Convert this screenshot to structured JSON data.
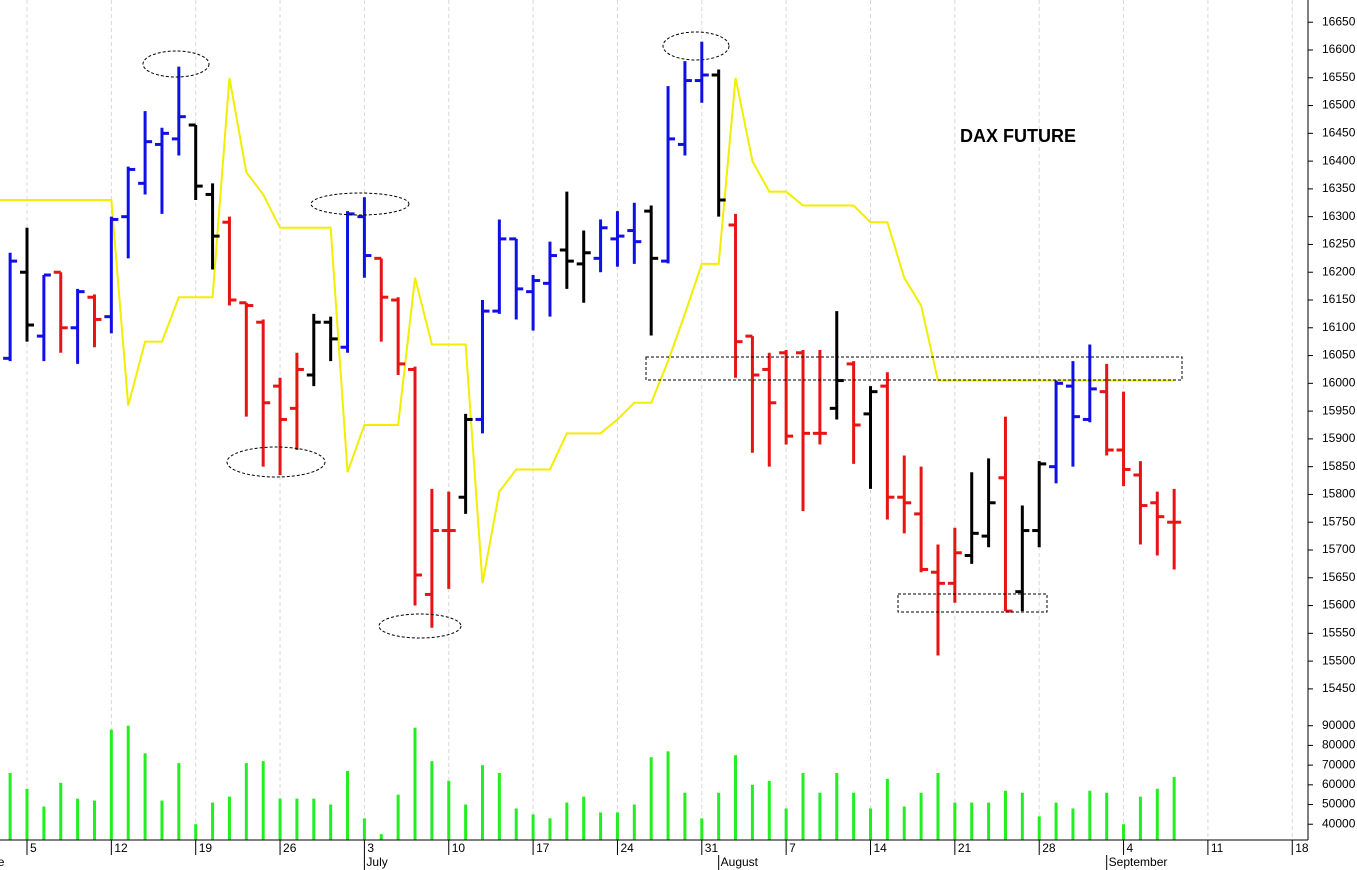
{
  "chart_data": [
    {
      "type": "ohlc",
      "title": "DAX FUTURE",
      "x": [
        -1,
        0,
        1,
        2,
        3,
        4,
        5,
        6,
        7,
        8,
        9,
        10,
        11,
        12,
        13,
        14,
        15,
        16,
        17,
        18,
        19,
        20,
        21,
        22,
        23,
        24,
        25,
        26,
        27,
        28,
        29,
        30,
        31,
        32,
        33,
        34,
        35,
        36,
        37,
        38,
        39,
        40,
        41,
        42,
        43,
        44,
        45,
        46,
        47,
        48,
        49,
        50,
        51,
        52,
        53,
        54,
        55,
        56,
        57,
        58,
        59,
        60,
        61,
        62,
        63,
        64,
        65,
        66,
        67,
        68
      ],
      "open": [
        16045,
        16200,
        16085,
        16200,
        16100,
        16155,
        16120,
        16300,
        16360,
        16430,
        16440,
        16465,
        16340,
        16290,
        16145,
        16110,
        15995,
        15955,
        16015,
        16110,
        16065,
        16300,
        16225,
        16150,
        16025,
        15620,
        15735,
        15795,
        15935,
        16130,
        16260,
        16165,
        16180,
        16240,
        16215,
        16225,
        16260,
        16275,
        16310,
        16220,
        16430,
        16545,
        16555,
        16285,
        16085,
        16025,
        16055,
        16055,
        15910,
        15955,
        16035,
        15945,
        15995,
        15795,
        15765,
        15660,
        15640,
        15690,
        15725,
        15830,
        15625,
        15735,
        15850,
        15995,
        15935,
        15985,
        15880,
        15835,
        15785,
        15750
      ],
      "high": [
        16235,
        16280,
        16195,
        16200,
        16170,
        16160,
        16300,
        16390,
        16490,
        16460,
        16570,
        16465,
        16360,
        16300,
        16145,
        16115,
        16010,
        16055,
        16125,
        16120,
        16310,
        16335,
        16225,
        16155,
        16030,
        15810,
        15805,
        15945,
        16150,
        16295,
        16260,
        16195,
        16255,
        16345,
        16275,
        16295,
        16310,
        16325,
        16320,
        16535,
        16580,
        16615,
        16565,
        16305,
        16085,
        16055,
        16060,
        16060,
        16060,
        16130,
        16040,
        15995,
        16020,
        15870,
        15850,
        15710,
        15740,
        15840,
        15865,
        15940,
        15780,
        15860,
        16005,
        16040,
        16070,
        16035,
        15985,
        15860,
        15805,
        15810
      ],
      "low": [
        16040,
        16075,
        16040,
        16055,
        16035,
        16065,
        16090,
        16225,
        16340,
        16305,
        16410,
        16330,
        16205,
        16140,
        15940,
        15850,
        15835,
        15880,
        15995,
        16040,
        16055,
        16190,
        16075,
        16015,
        15600,
        15560,
        15630,
        15765,
        15910,
        16125,
        16115,
        16095,
        16120,
        16170,
        16145,
        16200,
        16210,
        16215,
        16086,
        16216,
        16410,
        16505,
        16300,
        16010,
        15875,
        15850,
        15890,
        15770,
        15890,
        15935,
        15855,
        15810,
        15755,
        15730,
        15660,
        15510,
        15605,
        15675,
        15705,
        15590,
        15590,
        15705,
        15820,
        15850,
        15930,
        15870,
        15815,
        15710,
        15690,
        15665
      ],
      "close": [
        16220,
        16105,
        16195,
        16100,
        16165,
        16115,
        16295,
        16385,
        16435,
        16450,
        16480,
        16355,
        16265,
        16150,
        16140,
        15965,
        15935,
        16025,
        16110,
        16080,
        16305,
        16230,
        16155,
        16035,
        15655,
        15735,
        15735,
        15935,
        16130,
        16260,
        16170,
        16185,
        16230,
        16220,
        16235,
        16280,
        16265,
        16255,
        16225,
        16440,
        16545,
        16555,
        16330,
        16075,
        16015,
        15965,
        15905,
        15910,
        15910,
        16005,
        15925,
        15985,
        15795,
        15785,
        15665,
        15640,
        15695,
        15730,
        15785,
        15590,
        15735,
        15855,
        16000,
        15940,
        15990,
        15880,
        15845,
        15780,
        15760,
        15750
      ],
      "colors": [
        "#1010e6",
        "#000000",
        "#1010e6",
        "#e81414",
        "#1010e6",
        "#e81414",
        "#1010e6",
        "#1010e6",
        "#1010e6",
        "#1010e6",
        "#1010e6",
        "#000000",
        "#000000",
        "#e81414",
        "#e81414",
        "#e81414",
        "#e81414",
        "#e81414",
        "#000000",
        "#000000",
        "#1010e6",
        "#1010e6",
        "#e81414",
        "#e81414",
        "#e81414",
        "#e81414",
        "#e81414",
        "#000000",
        "#1010e6",
        "#1010e6",
        "#1010e6",
        "#1010e6",
        "#1010e6",
        "#000000",
        "#000000",
        "#1010e6",
        "#1010e6",
        "#1010e6",
        "#000000",
        "#1010e6",
        "#1010e6",
        "#1010e6",
        "#000000",
        "#e81414",
        "#e81414",
        "#e81414",
        "#e81414",
        "#e81414",
        "#e81414",
        "#000000",
        "#e81414",
        "#000000",
        "#e81414",
        "#e81414",
        "#e81414",
        "#e81414",
        "#e81414",
        "#000000",
        "#000000",
        "#e81414",
        "#000000",
        "#000000",
        "#1010e6",
        "#1010e6",
        "#1010e6",
        "#e81414",
        "#e81414",
        "#e81414",
        "#e81414",
        "#e81414"
      ],
      "overlay": {
        "color": "#f2ee00",
        "x": [
          -2,
          5,
          6,
          7,
          8,
          9,
          11,
          12,
          13,
          14,
          15,
          18,
          19,
          20,
          22,
          23,
          24,
          26,
          27,
          28,
          29,
          31,
          32,
          34,
          35,
          36,
          37,
          38,
          39,
          40,
          41,
          42,
          43,
          44,
          45,
          46,
          49,
          50,
          51,
          52,
          53,
          54,
          68
        ],
        "values": [
          16330,
          16330,
          15960,
          16075,
          16075,
          16155,
          16155,
          16550,
          16380,
          16340,
          16280,
          16280,
          15840,
          15925,
          15925,
          16190,
          16070,
          16070,
          15640,
          15805,
          15845,
          15845,
          15910,
          15910,
          15935,
          15965,
          15965,
          16040,
          16125,
          16215,
          16215,
          16550,
          16400,
          16345,
          16345,
          16320,
          16320,
          16290,
          16290,
          16190,
          16140,
          16005,
          16005
        ]
      },
      "ylim": [
        15430,
        16690
      ],
      "yticks": [
        15450,
        15500,
        15550,
        15600,
        15650,
        15700,
        15750,
        15800,
        15850,
        15900,
        15950,
        16000,
        16050,
        16100,
        16150,
        16200,
        16250,
        16300,
        16350,
        16400,
        16450,
        16500,
        16550,
        16600,
        16650
      ],
      "xticks": [
        {
          "value": 0,
          "label": "5"
        },
        {
          "value": 5,
          "label": "12"
        },
        {
          "value": 10,
          "label": "19"
        },
        {
          "value": 15,
          "label": "26"
        },
        {
          "value": 20,
          "label": "3"
        },
        {
          "value": 25,
          "label": "10"
        },
        {
          "value": 30,
          "label": "17"
        },
        {
          "value": 35,
          "label": "24"
        },
        {
          "value": 40,
          "label": "31"
        },
        {
          "value": 45,
          "label": "7"
        },
        {
          "value": 50,
          "label": "14"
        },
        {
          "value": 55,
          "label": "21"
        },
        {
          "value": 60,
          "label": "28"
        },
        {
          "value": 65,
          "label": "4"
        },
        {
          "value": 70,
          "label": "11"
        },
        {
          "value": 75,
          "label": "18"
        }
      ],
      "month_ticks": [
        {
          "value": -3,
          "label": "June"
        },
        {
          "value": 20,
          "label": "July"
        },
        {
          "value": 41,
          "label": "August"
        },
        {
          "value": 64,
          "label": "September"
        }
      ],
      "grid": true
    },
    {
      "type": "bar",
      "color": "#22ee22",
      "x": [
        -1,
        0,
        1,
        2,
        3,
        4,
        5,
        6,
        7,
        8,
        9,
        10,
        11,
        12,
        13,
        14,
        15,
        16,
        17,
        18,
        19,
        20,
        21,
        22,
        23,
        24,
        25,
        26,
        27,
        28,
        29,
        30,
        31,
        32,
        33,
        34,
        35,
        36,
        37,
        38,
        39,
        40,
        41,
        42,
        43,
        44,
        45,
        46,
        47,
        48,
        49,
        50,
        51,
        52,
        53,
        54,
        55,
        56,
        57,
        58,
        59,
        60,
        61,
        62,
        63,
        64,
        65,
        66,
        67,
        68
      ],
      "values": [
        66000,
        58000,
        49000,
        61000,
        53000,
        52000,
        88000,
        90000,
        76000,
        52000,
        71000,
        40000,
        51000,
        54000,
        71000,
        72000,
        53000,
        53000,
        53000,
        50000,
        67000,
        43000,
        35000,
        55000,
        89000,
        72000,
        62000,
        50000,
        70000,
        66000,
        48000,
        45000,
        43000,
        51000,
        54000,
        46000,
        46000,
        50000,
        74000,
        77000,
        56000,
        43000,
        56000,
        75000,
        60000,
        62000,
        48000,
        66000,
        56000,
        66000,
        56000,
        48000,
        63000,
        49000,
        56000,
        66000,
        51000,
        51000,
        51000,
        57000,
        56000,
        44000,
        51000,
        48000,
        57000,
        56000,
        40000,
        54000,
        58000,
        64000
      ],
      "ylim": [
        32000,
        100000
      ],
      "yticks": [
        40000,
        50000,
        60000,
        70000,
        80000,
        90000
      ]
    }
  ]
}
